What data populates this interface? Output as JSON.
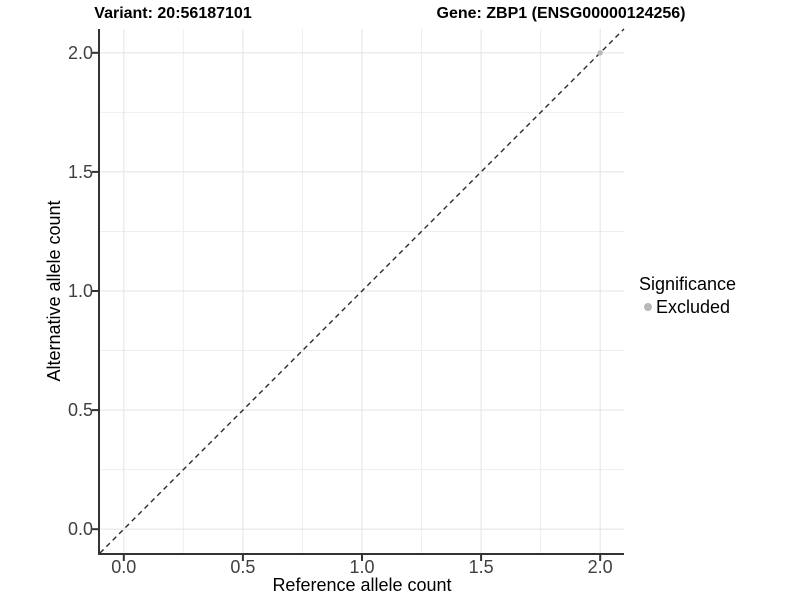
{
  "figure": {
    "title_left": "Variant: 20:56187101",
    "title_right": "Gene: ZBP1 (ENSG00000124256)"
  },
  "chart_data": {
    "type": "scatter",
    "title": "Variant: 20:56187101  |  Gene: ZBP1 (ENSG00000124256)",
    "xlabel": "Reference allele count",
    "ylabel": "Alternative allele count",
    "xlim": [
      -0.1,
      2.1
    ],
    "ylim": [
      -0.1,
      2.1
    ],
    "x_ticks": {
      "values": [
        0,
        0.5,
        1,
        1.5,
        2
      ],
      "labels": [
        "0.0",
        "0.5",
        "1.0",
        "1.5",
        "2.0"
      ]
    },
    "y_ticks": {
      "values": [
        0,
        0.5,
        1,
        1.5,
        2
      ],
      "labels": [
        "0.0",
        "0.5",
        "1.0",
        "1.5",
        "2.0"
      ]
    },
    "minor_grid_values": [
      0.25,
      0.75,
      1.25,
      1.75
    ],
    "grid": "major and minor gridlines, light gray on white panel",
    "reference_line": {
      "kind": "identity y = x",
      "style": "dashed",
      "color": "#2a2a2a"
    },
    "series": [
      {
        "name": "Excluded",
        "color": "#b9b9b9",
        "points": [
          {
            "x": 2.0,
            "y": 2.0
          }
        ]
      }
    ],
    "legend": {
      "title": "Significance",
      "position": "right",
      "items": [
        {
          "label": "Excluded",
          "color": "#b9b9b9",
          "marker": "circle"
        }
      ]
    }
  },
  "colors": {
    "background": "#ffffff",
    "grid_major": "#e3e3e3",
    "grid_minor": "#eeeeee",
    "axis_line": "#333333",
    "tick_mark": "#333333",
    "tick_label": "#404040",
    "text": "#000000",
    "point": "#b9b9b9"
  }
}
